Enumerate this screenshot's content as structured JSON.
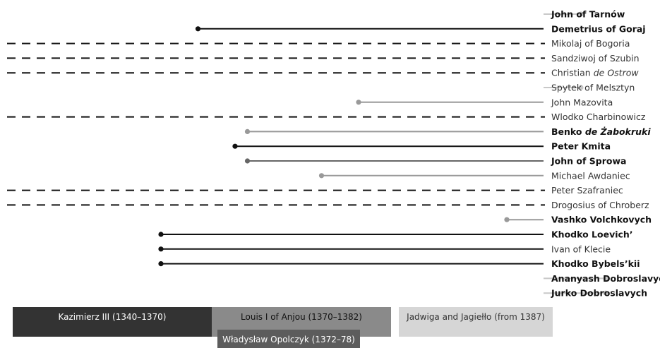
{
  "colors": {
    "black": "#111111",
    "dark_gray": "#666666",
    "mid_gray": "#999999",
    "light_gray": "#c8c8c8",
    "dashed": "#111111",
    "period_dark": "#333333",
    "period_mid": "#8a8a8a",
    "period_light": "#d6d6d6",
    "period_sub": "#5c5c5c"
  },
  "people": [
    {
      "name": "John of Tarnów",
      "bold": true,
      "style": "solid",
      "color": "light_gray",
      "start": 1386
    },
    {
      "name": "Demetrius of Goraj",
      "bold": true,
      "style": "solid",
      "color": "black",
      "start": 1355
    },
    {
      "name": "Mikolaj of Bogoria",
      "bold": false,
      "style": "dashed",
      "color": "black",
      "start": null
    },
    {
      "name": "Sandziwoj of Szubin",
      "bold": false,
      "style": "dashed",
      "color": "black",
      "start": null
    },
    {
      "name_parts": [
        {
          "text": "Christian ",
          "italic": false
        },
        {
          "text": "de Ostrow",
          "italic": true
        }
      ],
      "bold": false,
      "style": "dashed",
      "color": "black",
      "start": null
    },
    {
      "name": "Spytek of Melsztyn",
      "bold": false,
      "style": "solid",
      "color": "light_gray",
      "start": 1386
    },
    {
      "name": "John Mazovita",
      "bold": false,
      "style": "solid",
      "color": "mid_gray",
      "start": 1368
    },
    {
      "name": "Wlodko Charbinowicz",
      "bold": false,
      "style": "dashed",
      "color": "black",
      "start": null
    },
    {
      "name_parts": [
        {
          "text": "Benko ",
          "italic": false
        },
        {
          "text": "de Żabokruki",
          "italic": true
        }
      ],
      "bold": true,
      "style": "solid",
      "color": "mid_gray",
      "start": 1359
    },
    {
      "name": "Peter Kmita",
      "bold": true,
      "style": "solid",
      "color": "black",
      "start": 1358
    },
    {
      "name": "John of Sprowa",
      "bold": true,
      "style": "solid",
      "color": "dark_gray",
      "start": 1359
    },
    {
      "name": "Michael Awdaniec",
      "bold": false,
      "style": "solid",
      "color": "mid_gray",
      "start": 1365
    },
    {
      "name": "Peter Szafraniec",
      "bold": false,
      "style": "dashed",
      "color": "black",
      "start": null
    },
    {
      "name": "Drogosius of Chroberz",
      "bold": false,
      "style": "dashed",
      "color": "black",
      "start": null
    },
    {
      "name": "Vashko Volchkovych",
      "bold": true,
      "style": "solid",
      "color": "mid_gray",
      "start": 1380
    },
    {
      "name": "Khodko Loevich’",
      "bold": true,
      "style": "solid",
      "color": "black",
      "start": 1352
    },
    {
      "name": "Ivan of Klecie",
      "bold": false,
      "style": "solid",
      "color": "black",
      "start": 1352
    },
    {
      "name": "Khodko Bybels’kii",
      "bold": true,
      "style": "solid",
      "color": "black",
      "start": 1352
    },
    {
      "name": "Ananyash Dobroslavych",
      "bold": true,
      "style": "solid",
      "color": "light_gray",
      "start": 1388
    },
    {
      "name": "Jurko Dobroslavych",
      "bold": true,
      "style": "solid",
      "color": "light_gray",
      "start": 1388
    }
  ],
  "periods": [
    {
      "label": "Kazimierz III (1340–1370)",
      "color": "period_dark",
      "text_color": "#ffffff",
      "start": 1340,
      "end": 1370
    },
    {
      "label": "Louis I of Anjou (1370–1382)",
      "color": "period_mid",
      "text_color": "#111111",
      "start": 1370,
      "end": 1382
    },
    {
      "label": "Jadwiga and Jagiełło (from 1387)",
      "color": "period_light",
      "text_color": "#333333",
      "start": 1387,
      "end": 1397
    }
  ],
  "subperiod": {
    "label": "Władysław Opolczyk (1372–78)",
    "color": "period_sub",
    "text_color": "#ffffff",
    "start": 1372,
    "end": 1378
  }
}
